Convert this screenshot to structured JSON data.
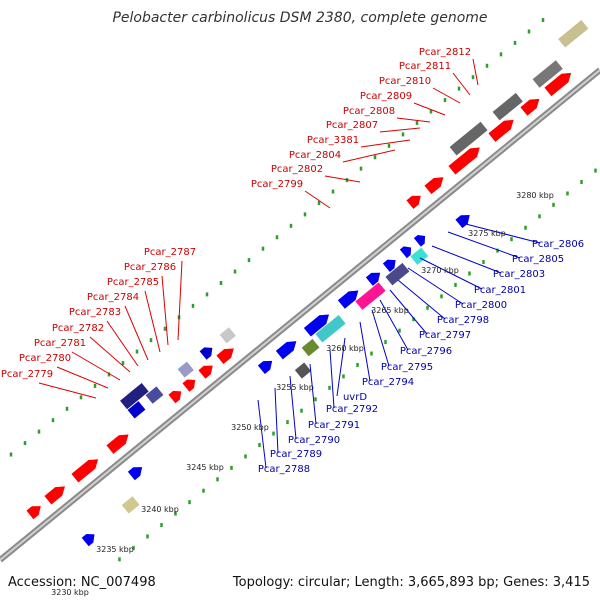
{
  "title": "Pelobacter carbinolicus DSM 2380, complete genome",
  "accession": "Accession: NC_007498",
  "topology": "Topology: circular; Length: 3,665,893 bp; Genes: 3,415",
  "colors": {
    "background": "#ffffff",
    "backbone": "#9a9a9a",
    "tick_dots": "#2e9e2e",
    "forward_gene": "#ff0000",
    "reverse_gene": "#0000ee",
    "top_label": "#cc0000",
    "bottom_label": "#0000aa",
    "label_line_top": "#dd0000",
    "label_line_bottom": "#0000cc"
  },
  "scale_labels": [
    "3230 kbp",
    "3235 kbp",
    "3240 kbp",
    "3245 kbp",
    "3250 kbp",
    "3255 kbp",
    "3260 kbp",
    "3265 kbp",
    "3270 kbp",
    "3275 kbp",
    "3280 kbp"
  ],
  "top_gene_labels": [
    "Pcar_2812",
    "Pcar_2811",
    "Pcar_2810",
    "Pcar_2809",
    "Pcar_2808",
    "Pcar_2807",
    "Pcar_3381",
    "Pcar_2804",
    "Pcar_2802",
    "Pcar_2799",
    "Pcar_2787",
    "Pcar_2786",
    "Pcar_2785",
    "Pcar_2784",
    "Pcar_2783",
    "Pcar_2782",
    "Pcar_2781",
    "Pcar_2780",
    "Pcar_2779"
  ],
  "bottom_gene_labels": [
    "Pcar_2806",
    "Pcar_2805",
    "Pcar_2803",
    "Pcar_2801",
    "Pcar_2800",
    "Pcar_2798",
    "Pcar_2797",
    "Pcar_2796",
    "Pcar_2795",
    "Pcar_2794",
    "uvrD",
    "Pcar_2792",
    "Pcar_2791",
    "Pcar_2790",
    "Pcar_2789",
    "Pcar_2788"
  ]
}
